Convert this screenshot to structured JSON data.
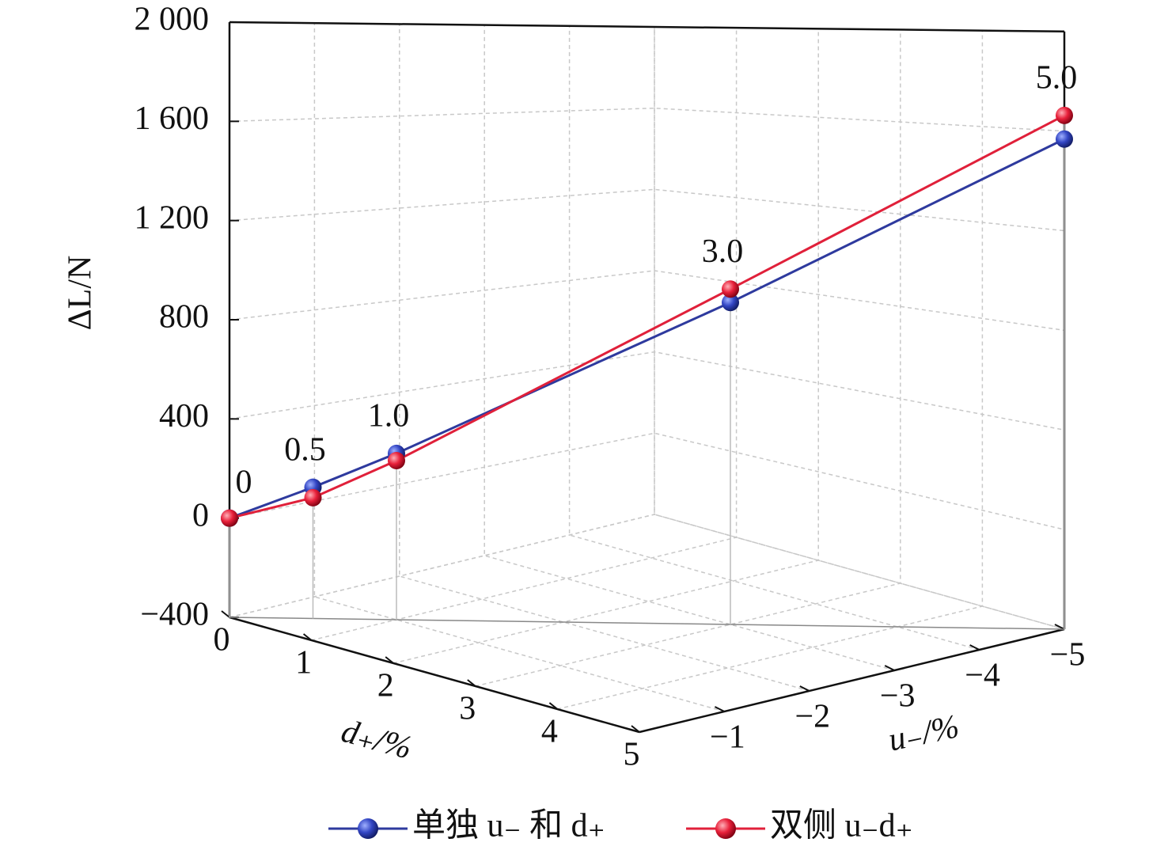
{
  "chart_data": {
    "type": "line3d",
    "zlabel": "ΔL/N",
    "xlabel": "d₊/%",
    "ylabel": "u₋/%",
    "x": [
      0,
      0.5,
      1,
      3,
      5
    ],
    "y": [
      0,
      -0.5,
      -1,
      -3,
      -5
    ],
    "point_labels": [
      "0",
      "0.5",
      "1.0",
      "3.0",
      "5.0"
    ],
    "series": [
      {
        "name": "单独 u₋ 和 d₊",
        "color": "#2e3a9e",
        "values": [
          0,
          129,
          270,
          895,
          1568
        ]
      },
      {
        "name": "双侧 u₋d₊",
        "color": "#e0203a",
        "values": [
          0,
          87,
          241,
          949,
          1663
        ]
      }
    ],
    "xlim": [
      0,
      5
    ],
    "xticks": [
      0,
      1,
      2,
      3,
      4,
      5
    ],
    "ylim": [
      0,
      -5
    ],
    "yticks": [
      {
        "value": -1,
        "label": "−1"
      },
      {
        "value": -2,
        "label": "−2"
      },
      {
        "value": -3,
        "label": "−3"
      },
      {
        "value": -4,
        "label": "−4"
      },
      {
        "value": -5,
        "label": "−5"
      }
    ],
    "zlim": [
      -400,
      2000
    ],
    "zticks": [
      {
        "value": -400,
        "label": "−400"
      },
      0,
      400,
      800,
      {
        "value": 1200,
        "label": "1 200"
      },
      {
        "value": 1600,
        "label": "1 600"
      },
      {
        "value": 2000,
        "label": "2 000"
      }
    ],
    "grid": true
  }
}
